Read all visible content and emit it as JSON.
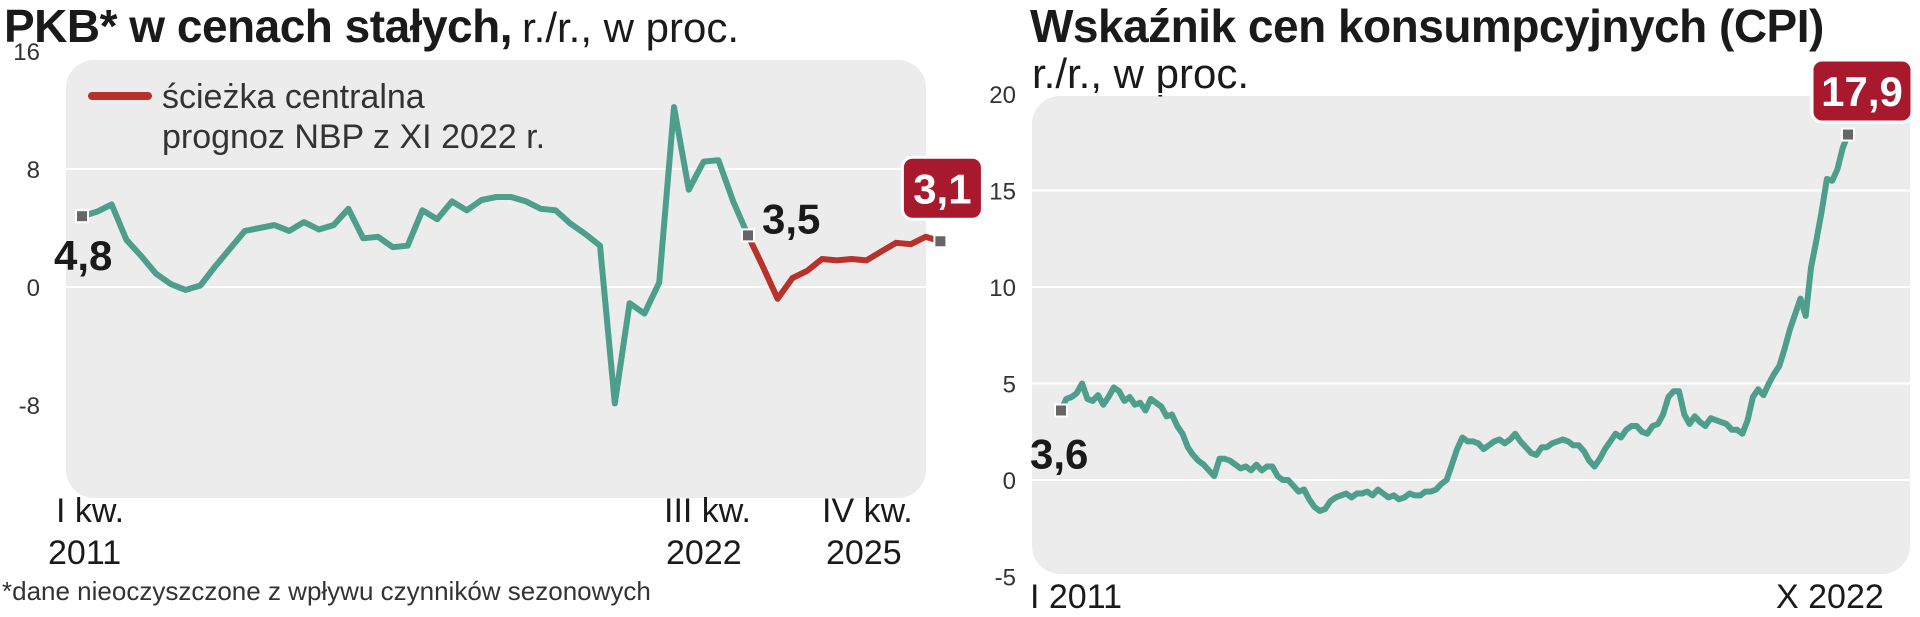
{
  "colors": {
    "series_main": "#4e9e8c",
    "series_forecast": "#b8312a",
    "badge": "#a8192e",
    "panel": "#ececec",
    "marker": "#666666"
  },
  "chart_data": [
    {
      "type": "line",
      "title": "PKB* w cenach stałych,",
      "subtitle": "r./r., w proc.",
      "ylim": [
        -8,
        16
      ],
      "yticks": [
        "16",
        "8",
        "0",
        "-8"
      ],
      "grid": "y",
      "legend": {
        "placement": "top-left",
        "label": "ścieżka centralna prognoz NBP z XI 2022 r.",
        "label_lines": [
          "ścieżka centralna",
          "prognoz NBP z XI 2022 r."
        ]
      },
      "x_labels": [
        {
          "line1": "I kw.",
          "line2": "2011"
        },
        {
          "line1": "III kw.",
          "line2": "2022"
        },
        {
          "line1": "IV kw.",
          "line2": "2025"
        }
      ],
      "series": [
        {
          "kind": "historical",
          "period": "I kw. 2011 – III kw. 2022",
          "values": [
            4.8,
            5.1,
            5.6,
            3.2,
            2.1,
            0.9,
            0.2,
            -0.2,
            0.1,
            1.4,
            2.6,
            3.8,
            4.0,
            4.2,
            3.8,
            4.4,
            3.9,
            4.2,
            5.3,
            3.3,
            3.4,
            2.7,
            2.8,
            5.2,
            4.6,
            5.8,
            5.2,
            5.9,
            6.1,
            6.1,
            5.8,
            5.3,
            5.2,
            4.3,
            3.6,
            2.8,
            -7.9,
            -1.1,
            -1.8,
            0.3,
            12.2,
            6.6,
            8.5,
            8.6,
            5.8,
            3.5
          ],
          "end_label": "3,5",
          "start_label": "4,8"
        },
        {
          "kind": "forecast",
          "name": "ścieżka centralna prognoz NBP z XI 2022 r.",
          "period": "III kw. 2022 – IV kw. 2025",
          "values": [
            3.5,
            1.4,
            -0.8,
            0.6,
            1.1,
            1.9,
            1.8,
            1.9,
            1.8,
            2.4,
            3.0,
            2.9,
            3.4,
            3.1
          ],
          "end_label": "3,1"
        }
      ]
    },
    {
      "type": "line",
      "title": "Wskaźnik cen konsumpcyjnych (CPI)",
      "subtitle": "r./r., w proc.",
      "ylim": [
        -5,
        20
      ],
      "yticks": [
        "20",
        "15",
        "10",
        "5",
        "0",
        "-5"
      ],
      "grid": "y",
      "x_labels": [
        "I 2011",
        "X 2022"
      ],
      "series": [
        {
          "period": "I 2011 – X 2022",
          "start_label": "3,6",
          "end_label": "17,9",
          "values": [
            3.6,
            4.2,
            4.3,
            4.5,
            5.0,
            4.2,
            4.1,
            4.4,
            3.9,
            4.3,
            4.8,
            4.6,
            4.1,
            4.3,
            3.9,
            4.0,
            3.6,
            4.2,
            4.0,
            3.8,
            3.3,
            3.4,
            2.8,
            2.4,
            1.7,
            1.3,
            1.0,
            0.8,
            0.5,
            0.2,
            1.1,
            1.1,
            1.0,
            0.8,
            0.6,
            0.7,
            0.5,
            0.8,
            0.5,
            0.7,
            0.7,
            0.2,
            0.0,
            0.0,
            -0.3,
            -0.6,
            -0.5,
            -1.0,
            -1.4,
            -1.6,
            -1.5,
            -1.1,
            -0.9,
            -0.8,
            -0.7,
            -0.9,
            -0.7,
            -0.7,
            -0.6,
            -0.8,
            -0.5,
            -0.7,
            -0.9,
            -0.8,
            -1.0,
            -0.9,
            -0.7,
            -0.8,
            -0.8,
            -0.6,
            -0.6,
            -0.5,
            -0.2,
            0.0,
            0.8,
            1.6,
            2.2,
            2.0,
            2.0,
            1.9,
            1.6,
            1.8,
            2.0,
            2.1,
            1.9,
            2.1,
            2.4,
            2.0,
            1.7,
            1.4,
            1.3,
            1.7,
            1.7,
            1.9,
            2.0,
            2.1,
            2.0,
            1.8,
            1.8,
            1.5,
            1.0,
            0.7,
            1.1,
            1.6,
            2.0,
            2.4,
            2.2,
            2.6,
            2.8,
            2.8,
            2.5,
            2.4,
            2.8,
            2.9,
            3.4,
            4.3,
            4.6,
            4.6,
            3.4,
            2.9,
            3.3,
            3.0,
            2.8,
            3.2,
            3.1,
            3.0,
            2.9,
            2.6,
            2.6,
            2.4,
            3.1,
            4.3,
            4.7,
            4.4,
            5.0,
            5.5,
            5.9,
            6.8,
            7.8,
            8.6,
            9.4,
            8.5,
            11.0,
            12.4,
            13.9,
            15.6,
            15.5,
            16.1,
            17.2,
            17.9
          ]
        }
      ]
    }
  ],
  "footnote": "*dane nieoczyszczone z wpływu czynników sezonowych"
}
